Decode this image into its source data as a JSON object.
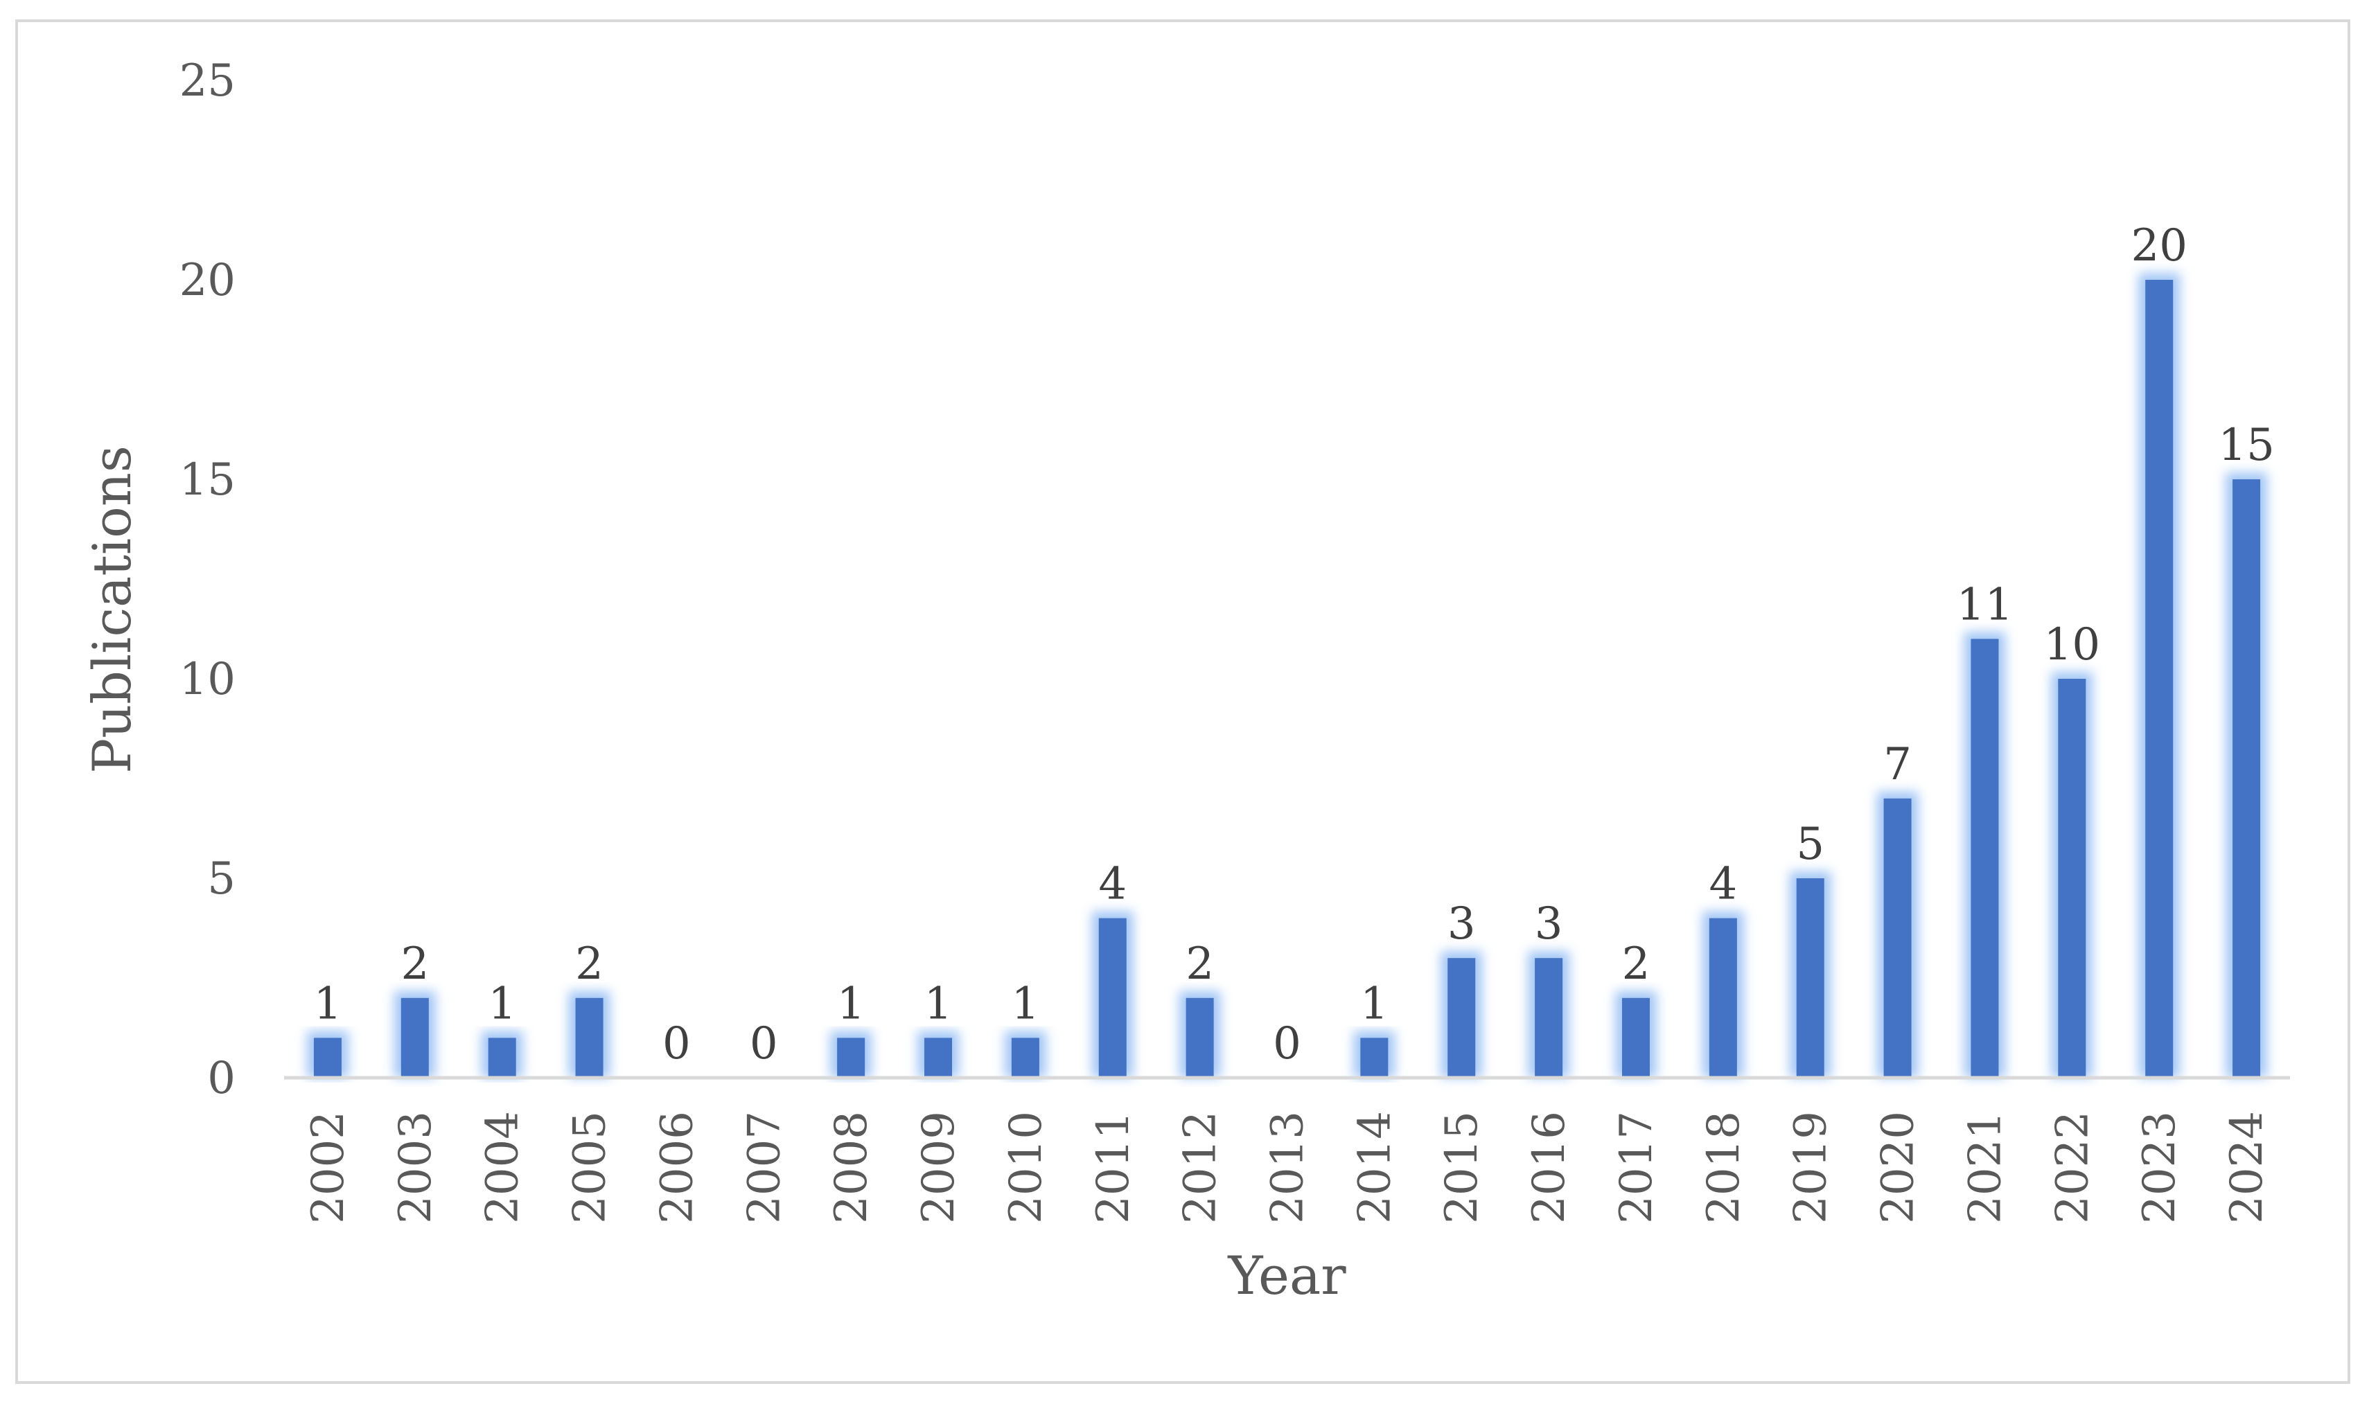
{
  "chart_data": {
    "type": "bar",
    "categories": [
      "2002",
      "2003",
      "2004",
      "2005",
      "2006",
      "2007",
      "2008",
      "2009",
      "2010",
      "2011",
      "2012",
      "2013",
      "2014",
      "2015",
      "2016",
      "2017",
      "2018",
      "2019",
      "2020",
      "2021",
      "2022",
      "2023",
      "2024"
    ],
    "values": [
      1,
      2,
      1,
      2,
      0,
      0,
      1,
      1,
      1,
      4,
      2,
      0,
      1,
      3,
      3,
      2,
      4,
      5,
      7,
      11,
      10,
      20,
      15
    ],
    "xlabel": "Year",
    "ylabel": "Publications",
    "ylim": [
      0,
      25
    ],
    "yticks": [
      "0",
      "5",
      "10",
      "15",
      "20",
      "25"
    ],
    "grid": false,
    "legend": "none",
    "colors": {
      "bar": "#4472c4",
      "glow": "#9dc3f5",
      "axis": "#d9d9d9",
      "text": "#595959"
    }
  }
}
